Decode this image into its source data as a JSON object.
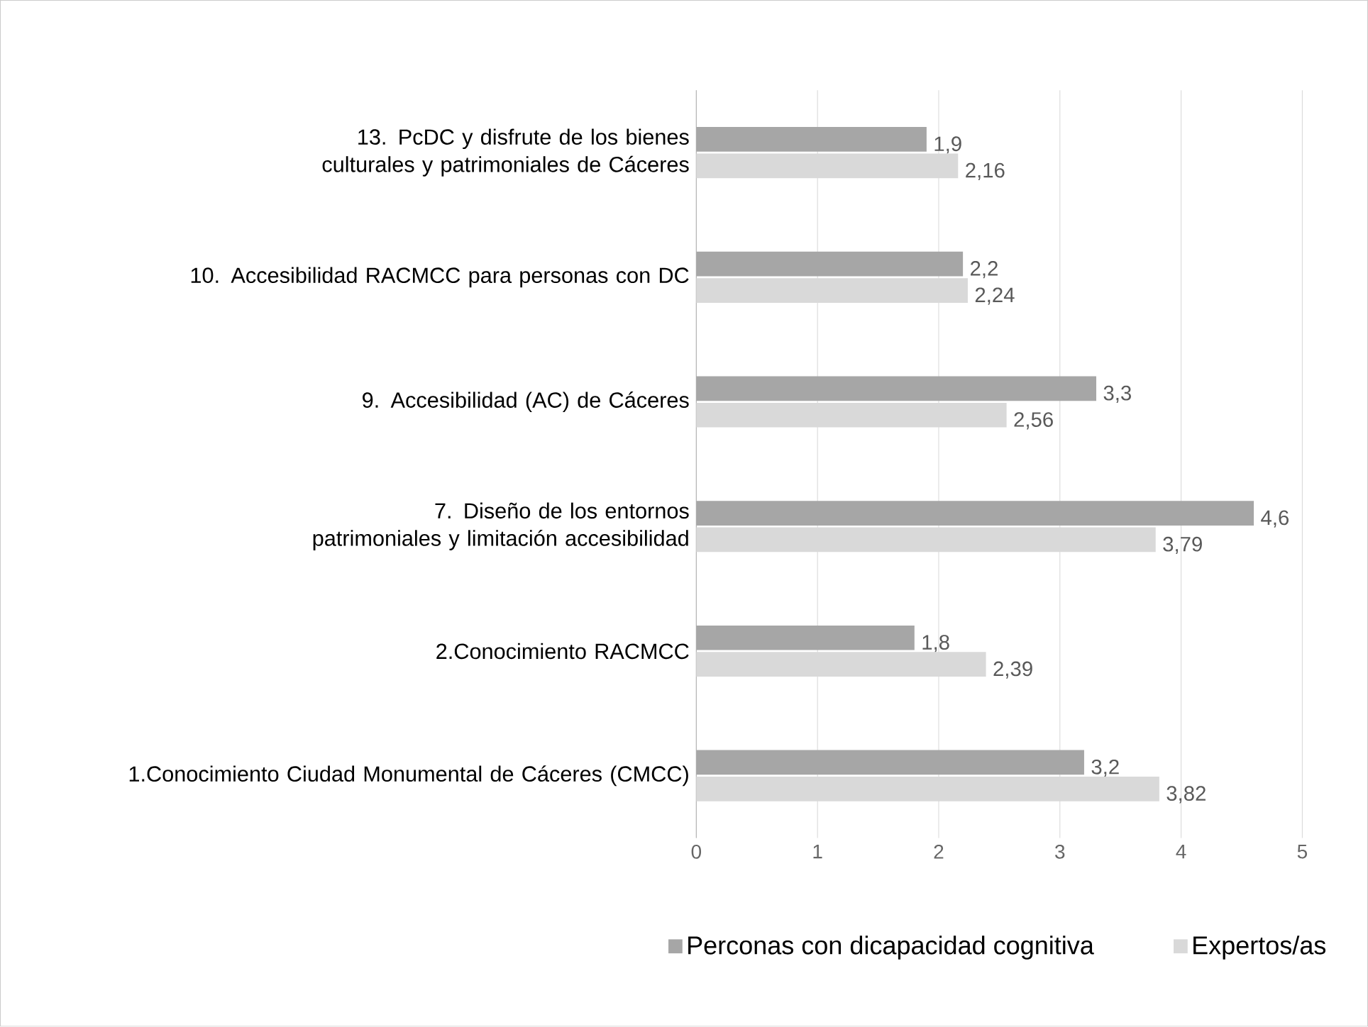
{
  "chart_data": {
    "type": "bar",
    "orientation": "horizontal",
    "categories": [
      "13. PcDC y  disfrute de los bienes culturales y patrimoniales  de Cáceres",
      "10. Accesibilidad RACMCC para personas con DC",
      "9. Accesibilidad (AC)  de Cáceres",
      "7. Diseño de los entornos patrimoniales y limitación accesibilidad",
      "2.Conocimiento  RACMCC",
      "1.Conocimiento  Ciudad Monumental de Cáceres (CMCC)"
    ],
    "series": [
      {
        "name": "Perconas con dicapacidad cognitiva",
        "color": "#a6a6a6",
        "values": [
          1.9,
          2.2,
          3.3,
          4.6,
          1.8,
          3.2
        ],
        "value_labels": [
          "1,9",
          "2,2",
          "3,3",
          "4,6",
          "1,8",
          "3,2"
        ]
      },
      {
        "name": "Expertos/as",
        "color": "#d9d9d9",
        "values": [
          2.16,
          2.24,
          2.56,
          3.79,
          2.39,
          3.82
        ],
        "value_labels": [
          "2,16",
          "2,24",
          "2,56",
          "3,79",
          "2,39",
          "3,82"
        ]
      }
    ],
    "xlim": [
      0,
      5
    ],
    "xticks": [
      0,
      1,
      2,
      3,
      4,
      5
    ],
    "grid": "x",
    "legend": "bottom"
  }
}
